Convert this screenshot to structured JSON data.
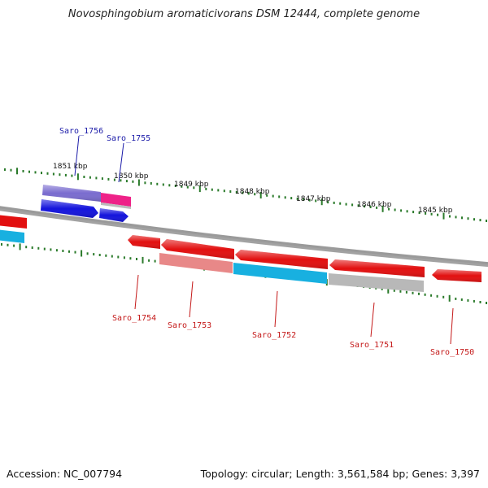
{
  "title": "Novosphingobium aromaticivorans DSM 12444, complete genome",
  "footer": {
    "accession": "Accession: NC_007794",
    "summary": "Topology: circular; Length: 3,561,584 bp; Genes: 3,397"
  },
  "scale_ticks": [
    "1851 kbp",
    "1850 kbp",
    "1849 kbp",
    "1848 kbp",
    "1847 kbp",
    "1846 kbp",
    "1845 kbp"
  ],
  "gene_labels": {
    "forward": [
      "Saro_1756",
      "Saro_1755"
    ],
    "reverse": [
      "Saro_1754",
      "Saro_1753",
      "Saro_1752",
      "Saro_1751",
      "Saro_1750"
    ]
  },
  "colors": {
    "backbone": "#8a8a8a",
    "forward_label": "#1a1aa8",
    "reverse_label": "#c41818",
    "tick_marks": "#2a7a2a",
    "gene_red": "#e21010",
    "gene_blue": "#1414dc",
    "gene_purple": "#7a6ccf",
    "gene_pink": "#ee2288",
    "gene_salmon": "#e88888",
    "gene_cyan": "#18b0e0",
    "gene_grey": "#b8b8b8"
  }
}
